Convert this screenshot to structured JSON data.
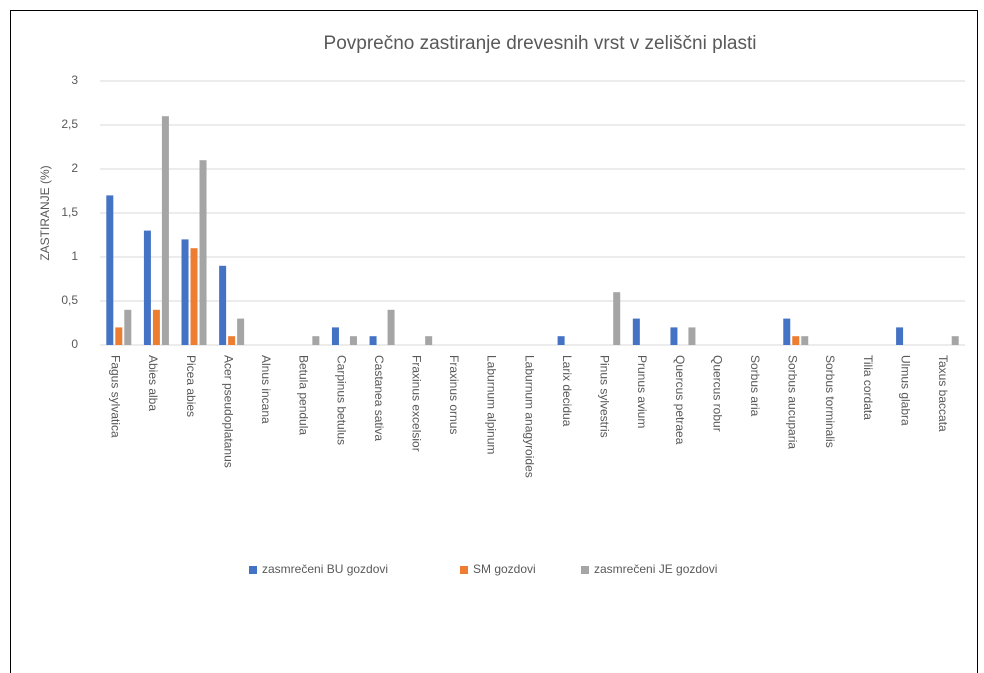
{
  "chart_data": {
    "type": "bar",
    "title": "Povprečno zastiranje drevesnih vrst v zeliščni plasti",
    "y_label": "ZASTIRANJE  (%)",
    "categories": [
      "Fagus sylvatica",
      "Abies alba",
      "Picea abies",
      "Acer pseudoplatanus",
      "Alnus incana",
      "Betula pendula",
      "Carpinus betulus",
      "Castanea sativa",
      "Fraxinus excelsior",
      "Fraxinus ornus",
      "Laburnum alpinum",
      "Laburnum anagyroides",
      "Larix decidua",
      "Pinus sylvestris",
      "Prunus avium",
      "Quercus petraea",
      "Quercus robur",
      "Sorbus aria",
      "Sorbus aucuparia",
      "Sorbus torminalis",
      "Tilia cordata",
      "Ulmus glabra",
      "Taxus baccata"
    ],
    "series": [
      {
        "name": "zasmrečeni BU gozdovi",
        "color": "#4472c4",
        "values": [
          1.7,
          1.3,
          1.2,
          0.9,
          0,
          0,
          0.2,
          0.1,
          0,
          0,
          0,
          0,
          0.1,
          0,
          0.3,
          0.2,
          0,
          0,
          0.3,
          0,
          0,
          0.2,
          0
        ]
      },
      {
        "name": "SM gozdovi",
        "color": "#ed7d31",
        "values": [
          0.2,
          0.4,
          1.1,
          0.1,
          0,
          0,
          0,
          0,
          0,
          0,
          0,
          0,
          0,
          0,
          0,
          0,
          0,
          0,
          0.1,
          0,
          0,
          0,
          0
        ]
      },
      {
        "name": "zasmrečeni JE gozdovi",
        "color": "#a5a5a5",
        "values": [
          0.4,
          2.6,
          2.1,
          0.3,
          0,
          0.1,
          0.1,
          0.4,
          0.1,
          0,
          0,
          0,
          0,
          0.6,
          0,
          0.2,
          0,
          0,
          0.1,
          0,
          0,
          0,
          0.1
        ]
      }
    ],
    "ylim": [
      0,
      3
    ],
    "yticks": [
      0,
      {
        "value": 0.5,
        "label": "0,5"
      },
      1,
      {
        "value": 1.5,
        "label": "1,5"
      },
      2,
      {
        "value": 2.5,
        "label": "2,5"
      },
      3
    ],
    "grid": true,
    "legend": "bottom"
  }
}
